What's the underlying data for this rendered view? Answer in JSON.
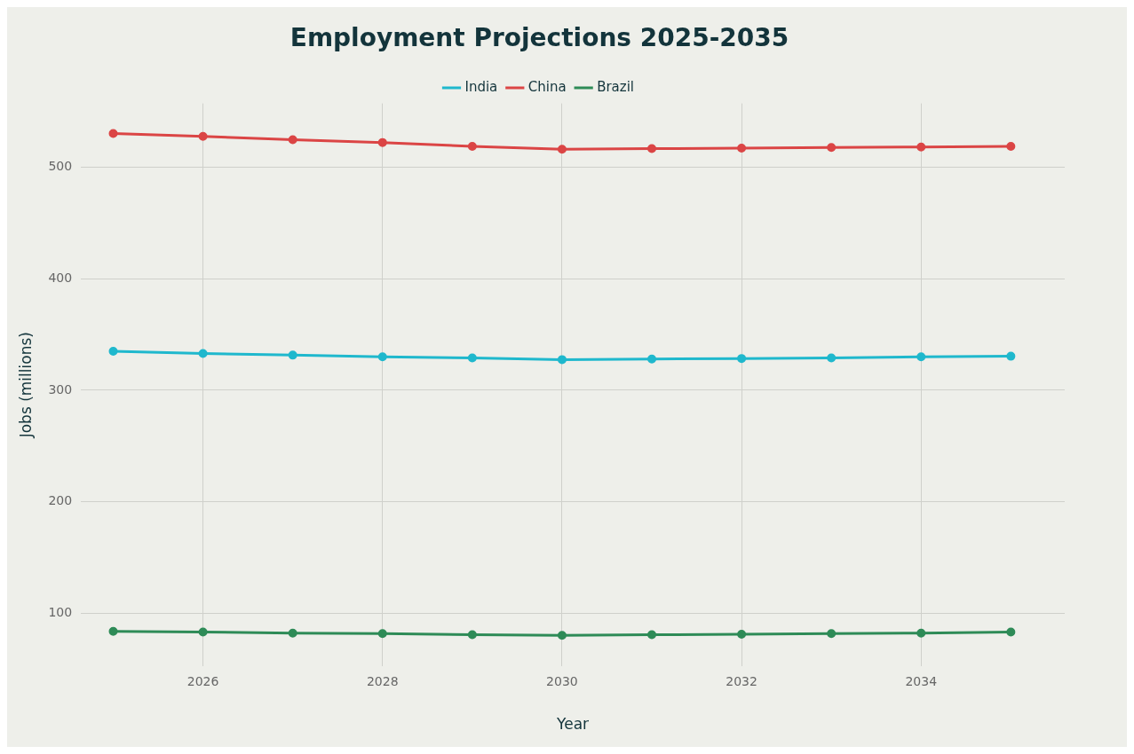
{
  "chart_data": {
    "type": "line",
    "title": "Employment Projections 2025-2035",
    "xlabel": "Year",
    "ylabel": "Jobs (millions)",
    "x": [
      2025,
      2026,
      2027,
      2028,
      2029,
      2030,
      2031,
      2032,
      2033,
      2034,
      2035
    ],
    "series": [
      {
        "name": "India",
        "color": "#1fb8cd",
        "values": [
          335,
          333,
          331.5,
          330,
          329,
          327.5,
          328,
          328.5,
          329,
          330,
          330.5
        ]
      },
      {
        "name": "China",
        "color": "#db4545",
        "values": [
          530,
          527.5,
          524.5,
          522,
          518.5,
          516,
          516.5,
          517,
          517.5,
          518,
          518.5
        ]
      },
      {
        "name": "Brazil",
        "color": "#2e8b57",
        "values": [
          84,
          83.5,
          82.5,
          82,
          81,
          80.5,
          81,
          81.5,
          82,
          82.5,
          83.5
        ]
      }
    ],
    "xlim": [
      2024.64,
      2035.6
    ],
    "ylim": [
      53,
      557
    ],
    "xticks": [
      2026,
      2028,
      2030,
      2032,
      2034
    ],
    "yticks": [
      100,
      200,
      300,
      400,
      500
    ],
    "grid": true,
    "legend": "top",
    "marker": "circle",
    "line_style": "solid"
  }
}
